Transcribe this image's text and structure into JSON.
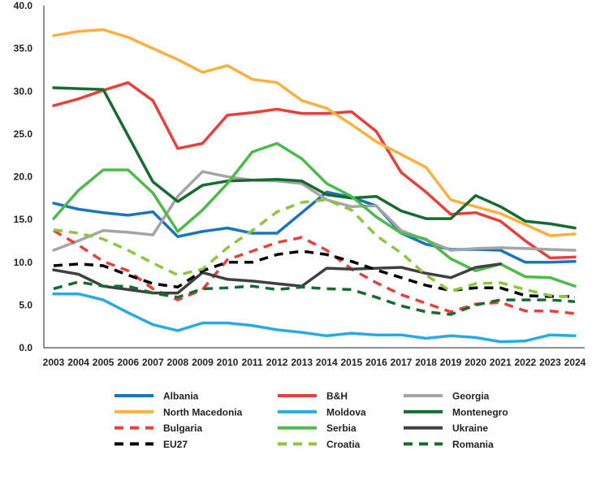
{
  "chart_data": {
    "type": "line",
    "title": "",
    "xlabel": "",
    "ylabel": "",
    "ylim": [
      0,
      40
    ],
    "yticks": [
      "0.0",
      "5.0",
      "10.0",
      "15.0",
      "20.0",
      "25.0",
      "30.0",
      "35.0",
      "40.0"
    ],
    "grid": false,
    "legend_position": "bottom",
    "x": [
      "2003",
      "2004",
      "2005",
      "2006",
      "2007",
      "2008",
      "2009",
      "2010",
      "2011",
      "2012",
      "2013",
      "2014",
      "2015",
      "2016",
      "2017",
      "2018",
      "2019",
      "2020",
      "2021",
      "2022",
      "2023",
      "2024"
    ],
    "series": [
      {
        "name": "Albania",
        "color": "#1b75bb",
        "dashed": false,
        "values": [
          16.9,
          16.2,
          15.8,
          15.5,
          15.9,
          13.0,
          13.6,
          14.0,
          13.4,
          13.4,
          15.8,
          18.2,
          17.6,
          16.6,
          13.4,
          12.1,
          11.5,
          11.5,
          11.4,
          10.0,
          10.0,
          10.1
        ]
      },
      {
        "name": "B&H",
        "color": "#e8413c",
        "dashed": false,
        "values": [
          28.3,
          29.1,
          30.1,
          31.0,
          28.9,
          23.3,
          23.9,
          27.2,
          27.5,
          27.9,
          27.4,
          27.4,
          27.6,
          25.3,
          20.5,
          18.2,
          15.6,
          15.8,
          14.8,
          12.5,
          10.5,
          10.6
        ]
      },
      {
        "name": "Georgia",
        "color": "#a5a5a5",
        "dashed": false,
        "values": [
          11.4,
          12.5,
          13.7,
          13.5,
          13.2,
          17.7,
          20.6,
          20.0,
          19.6,
          19.5,
          19.2,
          17.3,
          16.5,
          16.6,
          13.7,
          12.6,
          11.4,
          11.6,
          11.7,
          11.6,
          11.5,
          11.4
        ]
      },
      {
        "name": "North Macedonia",
        "color": "#fbb040",
        "dashed": false,
        "values": [
          36.5,
          37.0,
          37.2,
          36.3,
          35.0,
          33.7,
          32.2,
          33.0,
          31.4,
          31.0,
          28.9,
          28.0,
          26.1,
          24.1,
          22.6,
          21.1,
          17.3,
          16.5,
          15.7,
          14.4,
          13.1,
          13.3
        ]
      },
      {
        "name": "Moldova",
        "color": "#29abe2",
        "dashed": false,
        "values": [
          6.3,
          6.3,
          5.6,
          4.1,
          2.7,
          2.0,
          2.9,
          2.9,
          2.6,
          2.1,
          1.8,
          1.4,
          1.7,
          1.5,
          1.5,
          1.1,
          1.4,
          1.2,
          0.7,
          0.8,
          1.5,
          1.4
        ]
      },
      {
        "name": "Montenegro",
        "color": "#176b31",
        "dashed": false,
        "values": [
          30.4,
          30.3,
          30.2,
          24.8,
          19.4,
          17.1,
          19.0,
          19.5,
          19.6,
          19.7,
          19.5,
          17.9,
          17.5,
          17.7,
          16.0,
          15.1,
          15.1,
          17.8,
          16.5,
          14.8,
          14.5,
          14.0
        ]
      },
      {
        "name": "Bulgaria",
        "color": "#e8413c",
        "dashed": true,
        "values": [
          13.7,
          12.0,
          10.1,
          9.0,
          6.9,
          5.6,
          6.8,
          10.3,
          11.3,
          12.3,
          12.9,
          11.4,
          9.2,
          7.6,
          6.2,
          5.2,
          4.2,
          5.1,
          5.3,
          4.3,
          4.3,
          4.0
        ]
      },
      {
        "name": "Serbia",
        "color": "#4dbb4a",
        "dashed": false,
        "values": [
          15.1,
          18.4,
          20.8,
          20.8,
          18.1,
          13.6,
          16.1,
          19.2,
          22.9,
          23.9,
          22.1,
          19.2,
          17.7,
          15.3,
          13.4,
          12.7,
          10.4,
          9.0,
          9.8,
          8.3,
          8.2,
          7.2
        ]
      },
      {
        "name": "Ukraine",
        "color": "#404041",
        "dashed": false,
        "values": [
          9.1,
          8.6,
          7.2,
          6.8,
          6.4,
          6.4,
          8.8,
          8.0,
          7.8,
          7.5,
          7.2,
          9.3,
          9.2,
          9.3,
          9.4,
          8.7,
          8.2,
          9.4,
          9.8,
          null,
          null,
          null
        ]
      },
      {
        "name": "EU27",
        "color": "#000000",
        "dashed": true,
        "values": [
          9.6,
          9.8,
          9.6,
          8.5,
          7.5,
          7.1,
          9.0,
          10.0,
          10.0,
          10.9,
          11.3,
          10.9,
          10.1,
          9.1,
          8.2,
          7.3,
          6.7,
          7.0,
          7.0,
          6.1,
          6.0,
          6.0
        ]
      },
      {
        "name": "Croatia",
        "color": "#8dc63f",
        "dashed": true,
        "values": [
          13.8,
          13.4,
          12.7,
          11.4,
          9.9,
          8.5,
          9.2,
          11.7,
          13.7,
          15.9,
          17.0,
          17.3,
          16.1,
          13.1,
          11.1,
          8.5,
          6.6,
          7.5,
          7.6,
          6.8,
          6.1,
          5.9
        ]
      },
      {
        "name": "Romania",
        "color": "#176b31",
        "dashed": true,
        "values": [
          6.9,
          7.7,
          7.2,
          7.2,
          6.4,
          5.9,
          6.9,
          7.0,
          7.2,
          6.8,
          7.1,
          6.9,
          6.8,
          5.9,
          4.9,
          4.2,
          3.9,
          5.0,
          5.6,
          5.6,
          5.6,
          5.4
        ]
      }
    ]
  }
}
